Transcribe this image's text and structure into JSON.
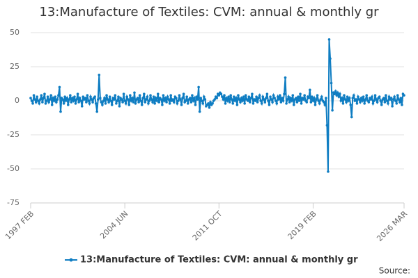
{
  "chart_data": {
    "type": "line",
    "title": "13:Manufacture of Textiles: CVM: annual & monthly gr",
    "source": "Source:",
    "categories": [
      "1997 FEB",
      null,
      null,
      null,
      null,
      null,
      null,
      null,
      null,
      null,
      null,
      null,
      null,
      null,
      null,
      null,
      null,
      null,
      null,
      null,
      null,
      null,
      null,
      null,
      null,
      null,
      null,
      null,
      null,
      null,
      null,
      null,
      null,
      null,
      null,
      null,
      null,
      null,
      null,
      null,
      null,
      null,
      null,
      null,
      null,
      null,
      null,
      null,
      null,
      null,
      null,
      null,
      null,
      null,
      null,
      null,
      null,
      null,
      null,
      null,
      null,
      null,
      null,
      null,
      null,
      null,
      null,
      null,
      null,
      null,
      null,
      null,
      null,
      null,
      null,
      null,
      null,
      null,
      null,
      null,
      null,
      null,
      null,
      null,
      null,
      null,
      null,
      null,
      "2004 JUN",
      null,
      null,
      null,
      null,
      null,
      null,
      null,
      null,
      null,
      null,
      null,
      null,
      null,
      null,
      null,
      null,
      null,
      null,
      null,
      null,
      null,
      null,
      null,
      null,
      null,
      null,
      null,
      null,
      null,
      null,
      null,
      null,
      null,
      null,
      null,
      null,
      null,
      null,
      null,
      null,
      null,
      null,
      null,
      null,
      null,
      null,
      null,
      null,
      null,
      null,
      null,
      null,
      null,
      null,
      null,
      null,
      null,
      null,
      null,
      null,
      null,
      null,
      null,
      null,
      null,
      null,
      null,
      null,
      null,
      null,
      null,
      null,
      null,
      null,
      null,
      null,
      null,
      null,
      null,
      null,
      null,
      null,
      null,
      null,
      null,
      null,
      null,
      "2011 OCT",
      null,
      null,
      null,
      null,
      null,
      null,
      null,
      null,
      null,
      null,
      null,
      null,
      null,
      null,
      null,
      null,
      null,
      null,
      null,
      null,
      null,
      null,
      null,
      null,
      null,
      null,
      null,
      null,
      null,
      null,
      null,
      null,
      null,
      null,
      null,
      null,
      null,
      null,
      null,
      null,
      null,
      null,
      null,
      null,
      null,
      null,
      null,
      null,
      null,
      null,
      null,
      null,
      null,
      null,
      null,
      null,
      null,
      null,
      null,
      null,
      null,
      null,
      null,
      null,
      null,
      null,
      null,
      null,
      null,
      null,
      null,
      null,
      null,
      null,
      null,
      null,
      null,
      null,
      null,
      null,
      null,
      null,
      null,
      null,
      null,
      null,
      null,
      "2019 FEB",
      null,
      null,
      null,
      null,
      null,
      null,
      null,
      null,
      null,
      null,
      null,
      null,
      null,
      null,
      null,
      null,
      null,
      null,
      null,
      null,
      null,
      null,
      null,
      null,
      null,
      null,
      null,
      null,
      null,
      null,
      null,
      null,
      null,
      null,
      null,
      null,
      null,
      null,
      null,
      null,
      null,
      null,
      null,
      null,
      null,
      null,
      null,
      null,
      null,
      null,
      null,
      null,
      null,
      null,
      null,
      null,
      null,
      null,
      null,
      null,
      null,
      null,
      null,
      null,
      null,
      null,
      null,
      null,
      null,
      null,
      null,
      null,
      null,
      null,
      null,
      null,
      null,
      null,
      null,
      null,
      null,
      null,
      null,
      null,
      "2026 MAR"
    ],
    "series": [
      {
        "name": "13:Manufacture of Textiles: CVM: annual & monthly gr",
        "color": "#0f7dc2",
        "values": [
          2,
          0,
          -2,
          4,
          1,
          -1,
          3,
          0,
          -2,
          1,
          4,
          -1,
          2,
          5,
          -2,
          0,
          3,
          -1,
          1,
          4,
          -3,
          2,
          0,
          3,
          -1,
          1,
          4,
          10,
          -8,
          2,
          1,
          -2,
          3,
          0,
          2,
          -3,
          1,
          4,
          -1,
          2,
          0,
          3,
          -2,
          1,
          5,
          -1,
          2,
          0,
          -4,
          3,
          1,
          2,
          -1,
          4,
          0,
          -2,
          3,
          1,
          -1,
          2,
          3,
          -2,
          -8,
          1,
          19,
          2,
          -1,
          -3,
          0,
          2,
          -2,
          4,
          1,
          -1,
          3,
          0,
          -3,
          2,
          1,
          4,
          -2,
          0,
          3,
          -4,
          2,
          1,
          -1,
          5,
          0,
          -2,
          3,
          1,
          -3,
          4,
          0,
          2,
          -1,
          6,
          -2,
          1,
          2,
          -1,
          4,
          0,
          -3,
          2,
          5,
          -1,
          1,
          3,
          -2,
          0,
          4,
          1,
          -1,
          3,
          -2,
          2,
          0,
          5,
          -1,
          2,
          1,
          -3,
          4,
          0,
          2,
          -1,
          3,
          1,
          -2,
          4,
          0,
          1,
          -1,
          3,
          2,
          -2,
          0,
          4,
          1,
          -3,
          2,
          5,
          -1,
          0,
          3,
          -2,
          1,
          2,
          -1,
          4,
          0,
          2,
          -3,
          3,
          1,
          10,
          -8,
          2,
          0,
          -2,
          3,
          1,
          -4,
          -3,
          -2,
          -5,
          -1,
          -3,
          -2,
          0,
          1,
          3,
          2,
          5,
          4,
          6,
          5,
          3,
          1,
          4,
          -2,
          2,
          0,
          3,
          -1,
          4,
          1,
          -2,
          3,
          0,
          2,
          -3,
          4,
          1,
          -1,
          2,
          0,
          3,
          -2,
          4,
          1,
          0,
          3,
          -1,
          2,
          5,
          -2,
          1,
          0,
          3,
          -1,
          2,
          4,
          0,
          -2,
          3,
          1,
          -1,
          2,
          5,
          0,
          -3,
          3,
          1,
          -1,
          4,
          2,
          0,
          -2,
          3,
          1,
          4,
          -1,
          2,
          0,
          5,
          17,
          -2,
          1,
          3,
          -1,
          2,
          0,
          4,
          -3,
          1,
          2,
          -1,
          3,
          0,
          5,
          -2,
          2,
          1,
          4,
          0,
          -1,
          3,
          2,
          8,
          -1,
          3,
          0,
          2,
          -3,
          1,
          4,
          0,
          -2,
          1,
          3,
          0,
          -1,
          -3,
          2,
          -18,
          -52,
          45,
          31,
          13,
          -7,
          6,
          5,
          7,
          4,
          6,
          3,
          5,
          0,
          2,
          -2,
          4,
          1,
          -1,
          3,
          0,
          2,
          -3,
          -12,
          2,
          4,
          0,
          1,
          -2,
          3,
          1,
          -1,
          2,
          0,
          3,
          -2,
          1,
          4,
          0,
          -1,
          2,
          1,
          3,
          -2,
          0,
          4,
          1,
          -1,
          2,
          3,
          0,
          -3,
          1,
          2,
          -1,
          4,
          0,
          -2,
          3,
          1,
          2,
          -4,
          1,
          3,
          0,
          -2,
          4,
          1,
          -1,
          2,
          -3,
          5,
          4
        ]
      }
    ],
    "ylim": [
      -75,
      50
    ],
    "yticks": [
      -75,
      -50,
      -25,
      0,
      25,
      50
    ],
    "grid": true
  }
}
